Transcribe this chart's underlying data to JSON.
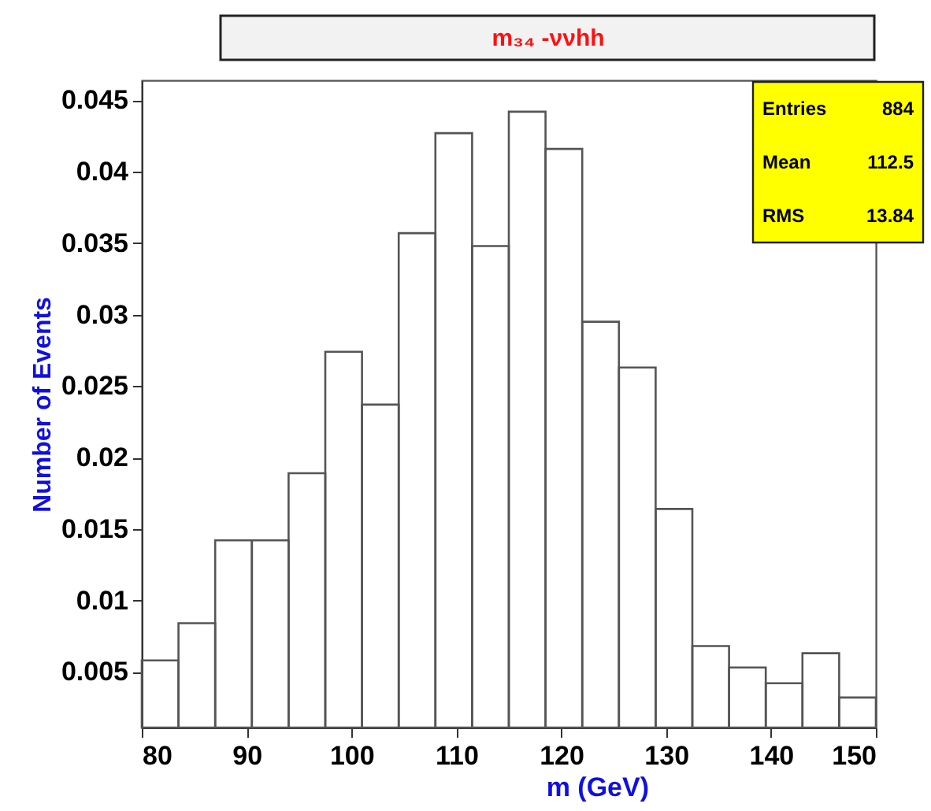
{
  "chart_data": {
    "type": "histogram",
    "title": "m₃₄ -ννhh",
    "xlabel": "m  (GeV)",
    "ylabel": "Number of Events",
    "bins": [
      80,
      83.5,
      87,
      90.5,
      94,
      97.5,
      101,
      104.5,
      108,
      111.5,
      115,
      118.5,
      122,
      125.5,
      129,
      132.5,
      136,
      139.5,
      143,
      146.5,
      150
    ],
    "values": [
      0.0058,
      0.0084,
      0.0142,
      0.0142,
      0.0189,
      0.0274,
      0.0237,
      0.0357,
      0.0427,
      0.0348,
      0.0442,
      0.0416,
      0.0295,
      0.0263,
      0.0164,
      0.0068,
      0.0053,
      0.0042,
      0.0063,
      0.0032
    ],
    "color": "#555555",
    "xlim": [
      80,
      150
    ],
    "xticks": [
      80,
      90,
      100,
      110,
      120,
      130,
      140,
      150
    ],
    "ylim": [
      0.0011,
      0.0464
    ],
    "yticks": [
      0.005,
      0.01,
      0.015,
      0.02,
      0.025,
      0.03,
      0.035,
      0.04,
      0.045
    ],
    "grid": false,
    "annotations": [
      "Entries",
      "884",
      "Mean",
      "112.5",
      "RMS",
      "13.84"
    ]
  }
}
